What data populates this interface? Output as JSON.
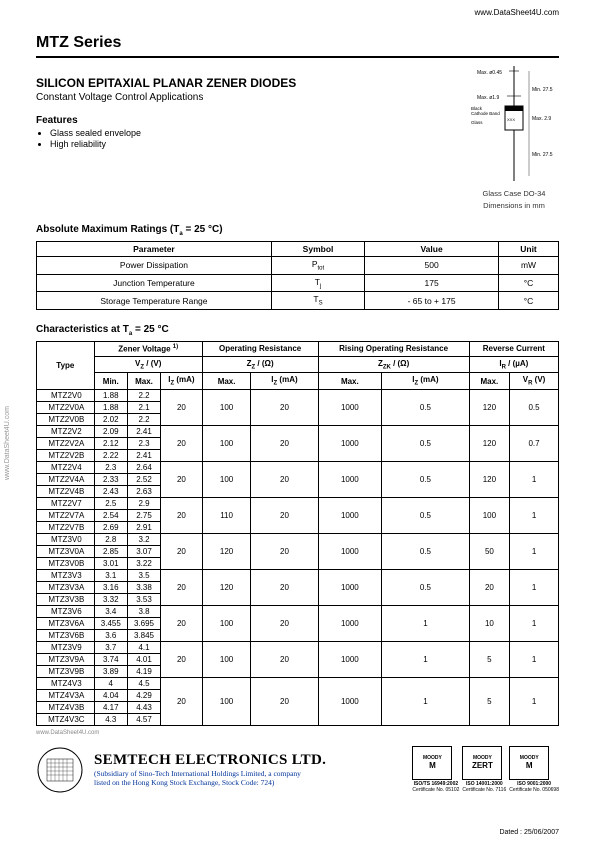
{
  "urls": {
    "top": "www.DataSheet4U.com",
    "side": "www.DataSheet4U.com",
    "bottom": "www.DataSheet4U.com"
  },
  "header": {
    "series": "MTZ Series",
    "headline": "SILICON EPITAXIAL PLANAR ZENER DIODES",
    "subhead": "Constant Voltage Control Applications",
    "features_title": "Features",
    "features": [
      "Glass sealed envelope",
      "High reliability"
    ]
  },
  "package": {
    "caption1": "Glass Case DO-34",
    "caption2": "Dimensions in mm",
    "labels": {
      "d1": "Max. ø0.45",
      "d2": "Max. ø1.9",
      "l1": "Min. 27.5",
      "l2": "Max. 2.9",
      "l3": "Min. 27.5",
      "cathode": "Black\nCathode Band",
      "glass": "Glass"
    }
  },
  "amr": {
    "title_pre": "Absolute Maximum Ratings (T",
    "title_sub": "a",
    "title_post": " = 25 °C)",
    "headers": [
      "Parameter",
      "Symbol",
      "Value",
      "Unit"
    ],
    "rows": [
      {
        "param": "Power Dissipation",
        "symbol": "P",
        "symbol_sub": "tot",
        "value": "500",
        "unit": "mW"
      },
      {
        "param": "Junction Temperature",
        "symbol": "T",
        "symbol_sub": "j",
        "value": "175",
        "unit": "°C"
      },
      {
        "param": "Storage Temperature Range",
        "symbol": "T",
        "symbol_sub": "S",
        "value": "- 65 to + 175",
        "unit": "°C"
      }
    ]
  },
  "char": {
    "title_pre": "Characteristics at T",
    "title_sub": "a",
    "title_post": " = 25 °C",
    "group_headers": {
      "type": "Type",
      "zener": "Zener Voltage",
      "zener_sup": "1)",
      "zener_sym": "V",
      "zener_sym_sub": "Z",
      "zener_unit": "(V)",
      "opres": "Operating Resistance",
      "opres_sym": "Z",
      "opres_sym_sub": "Z",
      "opres_unit": "(Ω)",
      "risop": "Rising Operating Resistance",
      "risop_sym": "Z",
      "risop_sym_sub": "ZK",
      "risop_unit": "(Ω)",
      "rev": "Reverse Current",
      "rev_sym": "I",
      "rev_sym_sub": "R",
      "rev_unit": "(µA)"
    },
    "col_headers": [
      "Min.",
      "Max.",
      "Iz (mA)",
      "Max.",
      "Iz (mA)",
      "Max.",
      "Iz (mA)",
      "Max.",
      "VR (V)"
    ],
    "groups": [
      {
        "rows": [
          {
            "type": "MTZ2V0",
            "min": "1.88",
            "max": "2.2"
          },
          {
            "type": "MTZ2V0A",
            "min": "1.88",
            "max": "2.1"
          },
          {
            "type": "MTZ2V0B",
            "min": "2.02",
            "max": "2.2"
          }
        ],
        "iz": "20",
        "zz": "100",
        "zziz": "20",
        "zzk": "1000",
        "zzkiz": "0.5",
        "ir": "120",
        "vr": "0.5"
      },
      {
        "rows": [
          {
            "type": "MTZ2V2",
            "min": "2.09",
            "max": "2.41"
          },
          {
            "type": "MTZ2V2A",
            "min": "2.12",
            "max": "2.3"
          },
          {
            "type": "MTZ2V2B",
            "min": "2.22",
            "max": "2.41"
          }
        ],
        "iz": "20",
        "zz": "100",
        "zziz": "20",
        "zzk": "1000",
        "zzkiz": "0.5",
        "ir": "120",
        "vr": "0.7"
      },
      {
        "rows": [
          {
            "type": "MTZ2V4",
            "min": "2.3",
            "max": "2.64"
          },
          {
            "type": "MTZ2V4A",
            "min": "2.33",
            "max": "2.52"
          },
          {
            "type": "MTZ2V4B",
            "min": "2.43",
            "max": "2.63"
          }
        ],
        "iz": "20",
        "zz": "100",
        "zziz": "20",
        "zzk": "1000",
        "zzkiz": "0.5",
        "ir": "120",
        "vr": "1"
      },
      {
        "rows": [
          {
            "type": "MTZ2V7",
            "min": "2.5",
            "max": "2.9"
          },
          {
            "type": "MTZ2V7A",
            "min": "2.54",
            "max": "2.75"
          },
          {
            "type": "MTZ2V7B",
            "min": "2.69",
            "max": "2.91"
          }
        ],
        "iz": "20",
        "zz": "110",
        "zziz": "20",
        "zzk": "1000",
        "zzkiz": "0.5",
        "ir": "100",
        "vr": "1"
      },
      {
        "rows": [
          {
            "type": "MTZ3V0",
            "min": "2.8",
            "max": "3.2"
          },
          {
            "type": "MTZ3V0A",
            "min": "2.85",
            "max": "3.07"
          },
          {
            "type": "MTZ3V0B",
            "min": "3.01",
            "max": "3.22"
          }
        ],
        "iz": "20",
        "zz": "120",
        "zziz": "20",
        "zzk": "1000",
        "zzkiz": "0.5",
        "ir": "50",
        "vr": "1"
      },
      {
        "rows": [
          {
            "type": "MTZ3V3",
            "min": "3.1",
            "max": "3.5"
          },
          {
            "type": "MTZ3V3A",
            "min": "3.16",
            "max": "3.38"
          },
          {
            "type": "MTZ3V3B",
            "min": "3.32",
            "max": "3.53"
          }
        ],
        "iz": "20",
        "zz": "120",
        "zziz": "20",
        "zzk": "1000",
        "zzkiz": "0.5",
        "ir": "20",
        "vr": "1"
      },
      {
        "rows": [
          {
            "type": "MTZ3V6",
            "min": "3.4",
            "max": "3.8"
          },
          {
            "type": "MTZ3V6A",
            "min": "3.455",
            "max": "3.695"
          },
          {
            "type": "MTZ3V6B",
            "min": "3.6",
            "max": "3.845"
          }
        ],
        "iz": "20",
        "zz": "100",
        "zziz": "20",
        "zzk": "1000",
        "zzkiz": "1",
        "ir": "10",
        "vr": "1"
      },
      {
        "rows": [
          {
            "type": "MTZ3V9",
            "min": "3.7",
            "max": "4.1"
          },
          {
            "type": "MTZ3V9A",
            "min": "3.74",
            "max": "4.01"
          },
          {
            "type": "MTZ3V9B",
            "min": "3.89",
            "max": "4.19"
          }
        ],
        "iz": "20",
        "zz": "100",
        "zziz": "20",
        "zzk": "1000",
        "zzkiz": "1",
        "ir": "5",
        "vr": "1"
      },
      {
        "rows": [
          {
            "type": "MTZ4V3",
            "min": "4",
            "max": "4.5"
          },
          {
            "type": "MTZ4V3A",
            "min": "4.04",
            "max": "4.29"
          },
          {
            "type": "MTZ4V3B",
            "min": "4.17",
            "max": "4.43"
          },
          {
            "type": "MTZ4V3C",
            "min": "4.3",
            "max": "4.57"
          }
        ],
        "iz": "20",
        "zz": "100",
        "zziz": "20",
        "zzk": "1000",
        "zzkiz": "1",
        "ir": "5",
        "vr": "1"
      }
    ]
  },
  "footer": {
    "company": "SEMTECH ELECTRONICS LTD.",
    "sub1": "(Subsidiary of Sino-Tech International Holdings Limited, a company",
    "sub2": "listed on the Hong Kong Stock Exchange, Stock Code: 724)",
    "certs": [
      {
        "top": "MOODY",
        "mid": "M",
        "sub": "ISO/TS 16949:2002",
        "sub2": "Certificate No. 05102"
      },
      {
        "top": "MOODY",
        "mid": "ZERT",
        "sub": "ISO 14001:2000",
        "sub2": "Certificate No. 7116"
      },
      {
        "top": "MOODY",
        "mid": "M",
        "sub": "ISO 9001:2000",
        "sub2": "Certificate No. 050698"
      }
    ],
    "dated": "Dated : 25/06/2007"
  }
}
